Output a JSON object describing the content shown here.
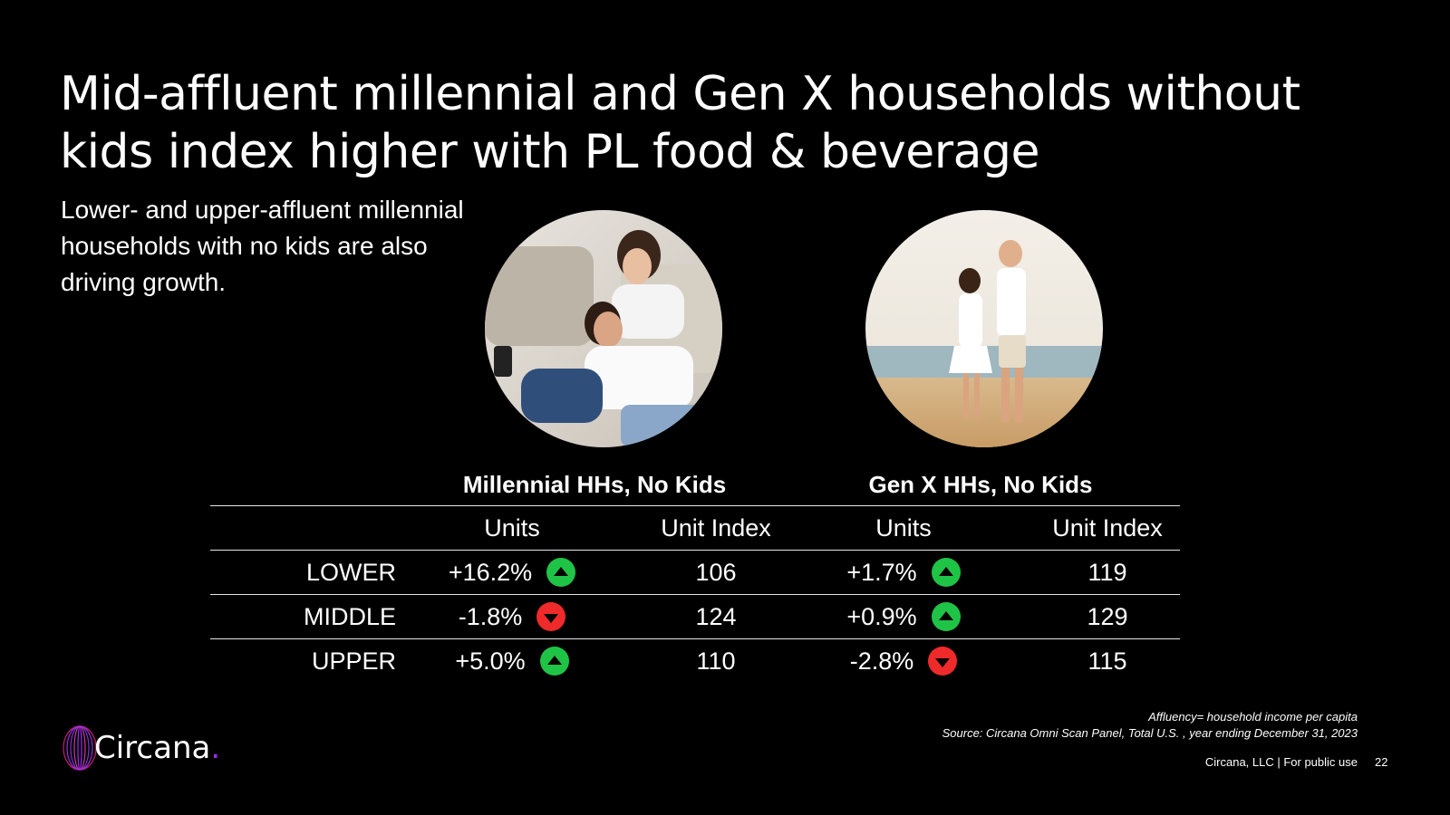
{
  "title": "Mid-affluent millennial and Gen X households without kids index higher with PL food & beverage",
  "subtitle": "Lower- and upper-affluent millennial households with no kids are also driving growth.",
  "table": {
    "groups": [
      "Millennial HHs, No Kids",
      "Gen X HHs, No Kids"
    ],
    "columns": [
      "Units",
      "Unit Index",
      "Units",
      "Unit Index"
    ],
    "rows": [
      {
        "label": "LOWER",
        "units1": "+16.2%",
        "trend1": "up",
        "index1": "106",
        "units2": "+1.7%",
        "trend2": "up",
        "index2": "119"
      },
      {
        "label": "MIDDLE",
        "units1": "-1.8%",
        "trend1": "down",
        "index1": "124",
        "units2": "+0.9%",
        "trend2": "up",
        "index2": "129"
      },
      {
        "label": "UPPER",
        "units1": "+5.0%",
        "trend1": "up",
        "index1": "110",
        "units2": "-2.8%",
        "trend2": "down",
        "index2": "115"
      }
    ]
  },
  "colors": {
    "up": "#1fc447",
    "down": "#ee2a2a",
    "brand_accent": "#9b2cf0"
  },
  "logo": {
    "name": "Circana",
    "dot": "."
  },
  "notes": {
    "affluency": "Affluency= household income per capita",
    "source": "Source: Circana Omni Scan Panel, Total U.S. , year ending December 31, 2023"
  },
  "footer": {
    "text": "Circana, LLC |  For public use",
    "page": "22"
  }
}
